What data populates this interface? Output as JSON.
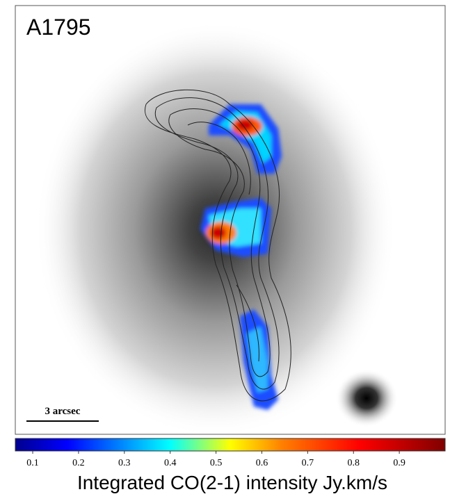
{
  "image": {
    "label": "A1795",
    "scale_bar": "3 arcsec"
  },
  "colorbar": {
    "lim": [
      0.062,
      1.0
    ],
    "ticks": [
      0.1,
      0.2,
      0.3,
      0.4,
      0.5,
      0.6,
      0.7,
      0.8,
      0.9
    ],
    "label": "Integrated CO(2-1) intensity Jy.km/s"
  }
}
